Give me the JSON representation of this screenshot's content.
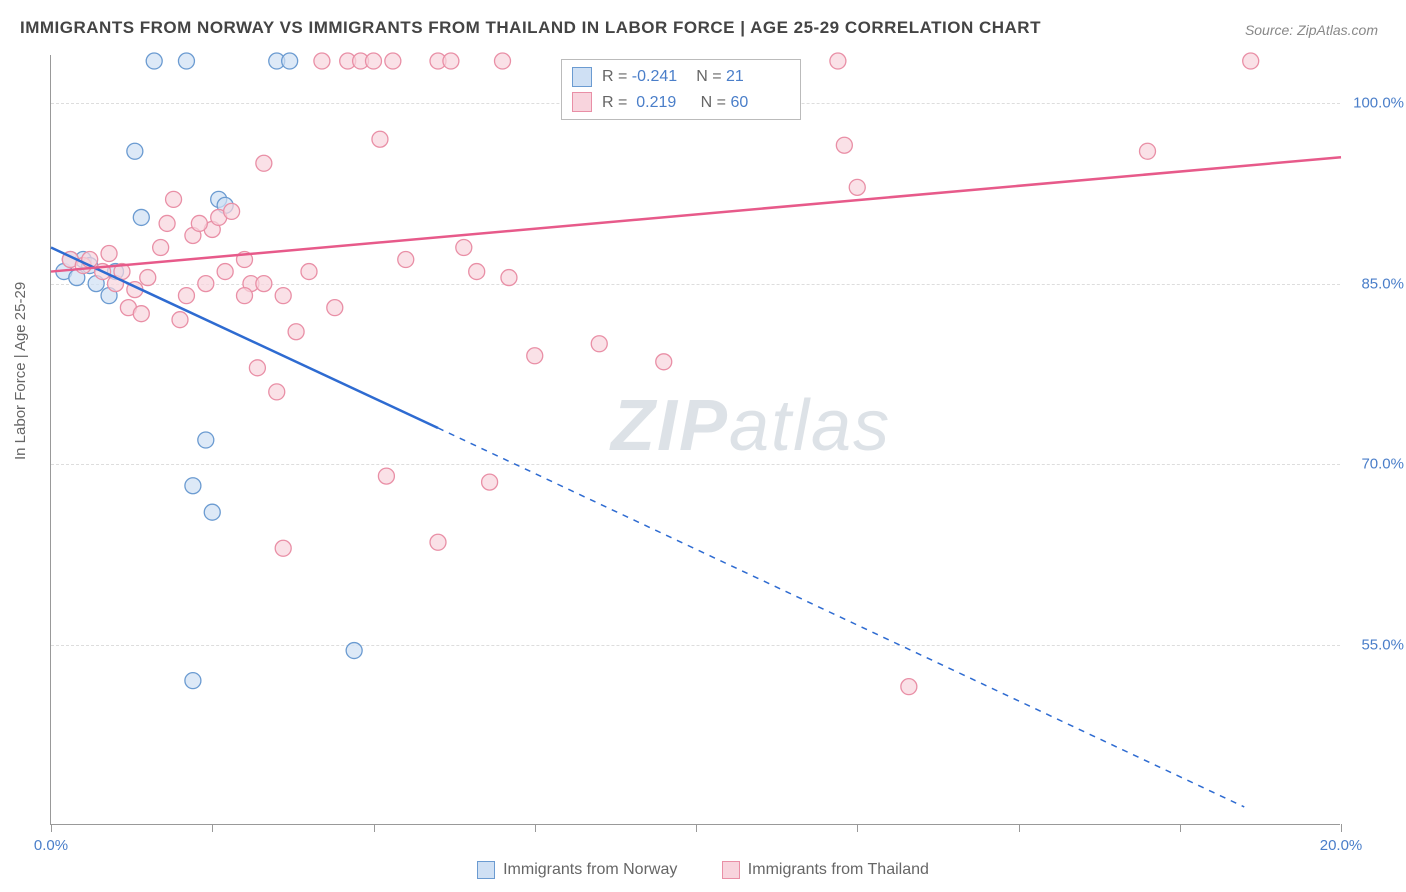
{
  "title": "IMMIGRANTS FROM NORWAY VS IMMIGRANTS FROM THAILAND IN LABOR FORCE | AGE 25-29 CORRELATION CHART",
  "source": "Source: ZipAtlas.com",
  "ylabel": "In Labor Force | Age 25-29",
  "watermark": {
    "bold": "ZIP",
    "light": "atlas"
  },
  "chart": {
    "type": "scatter-with-regression",
    "xlim": [
      0,
      20
    ],
    "ylim": [
      40,
      104
    ],
    "y_ticks": [
      55.0,
      70.0,
      85.0,
      100.0
    ],
    "y_tick_labels": [
      "55.0%",
      "70.0%",
      "85.0%",
      "100.0%"
    ],
    "x_ticks": [
      0,
      2.5,
      5,
      7.5,
      10,
      12.5,
      15,
      17.5,
      20
    ],
    "x_tick_labels": {
      "0": "0.0%",
      "20": "20.0%"
    },
    "background": "#ffffff",
    "grid_color": "#dddddd",
    "axis_color": "#999999",
    "label_color": "#4a7ec9",
    "legend_top": {
      "rows": [
        {
          "color_fill": "#cfe0f4",
          "color_stroke": "#6b9bd1",
          "r": "-0.241",
          "n": "21"
        },
        {
          "color_fill": "#f8d4dd",
          "color_stroke": "#e98fa6",
          "r": "0.219",
          "n": "60"
        }
      ]
    },
    "legend_bottom": [
      {
        "label": "Immigrants from Norway",
        "fill": "#cfe0f4",
        "stroke": "#6b9bd1"
      },
      {
        "label": "Immigrants from Thailand",
        "fill": "#f8d4dd",
        "stroke": "#e98fa6"
      }
    ],
    "series": [
      {
        "name": "norway",
        "marker_fill": "#cfe0f4",
        "marker_stroke": "#6b9bd1",
        "marker_r": 8,
        "line_color": "#2e6bd1",
        "line_width": 2.5,
        "reg_solid": {
          "x1": 0,
          "y1": 88,
          "x2": 6,
          "y2": 73
        },
        "reg_dash": {
          "x1": 6,
          "y1": 73,
          "x2": 18.5,
          "y2": 41.5
        },
        "points": [
          [
            0.2,
            86
          ],
          [
            0.4,
            85.5
          ],
          [
            0.5,
            87
          ],
          [
            0.6,
            86.5
          ],
          [
            0.7,
            85
          ],
          [
            0.9,
            84
          ],
          [
            1.0,
            86
          ],
          [
            1.3,
            96
          ],
          [
            1.4,
            90.5
          ],
          [
            1.6,
            103.5
          ],
          [
            2.1,
            103.5
          ],
          [
            2.6,
            92
          ],
          [
            2.7,
            91.5
          ],
          [
            2.2,
            68.2
          ],
          [
            2.4,
            72
          ],
          [
            3.5,
            103.5
          ],
          [
            3.7,
            103.5
          ],
          [
            2.5,
            66
          ],
          [
            2.2,
            52
          ],
          [
            4.7,
            54.5
          ],
          [
            0.3,
            87
          ]
        ]
      },
      {
        "name": "thailand",
        "marker_fill": "#f8d4dd",
        "marker_stroke": "#e98fa6",
        "marker_r": 8,
        "line_color": "#e75a8a",
        "line_width": 2.5,
        "reg_solid": {
          "x1": 0,
          "y1": 86,
          "x2": 20,
          "y2": 95.5
        },
        "points": [
          [
            0.3,
            87
          ],
          [
            0.5,
            86.5
          ],
          [
            0.6,
            87
          ],
          [
            0.8,
            86
          ],
          [
            1.0,
            85
          ],
          [
            1.1,
            86
          ],
          [
            1.3,
            84.5
          ],
          [
            1.5,
            85.5
          ],
          [
            1.2,
            83
          ],
          [
            1.7,
            88
          ],
          [
            1.8,
            90
          ],
          [
            2.0,
            82
          ],
          [
            2.1,
            84
          ],
          [
            2.2,
            89
          ],
          [
            2.4,
            85
          ],
          [
            2.5,
            89.5
          ],
          [
            2.6,
            90.5
          ],
          [
            2.8,
            91
          ],
          [
            3.0,
            87
          ],
          [
            3.1,
            85
          ],
          [
            3.2,
            78
          ],
          [
            3.3,
            95
          ],
          [
            3.5,
            76
          ],
          [
            3.6,
            84
          ],
          [
            3.8,
            81
          ],
          [
            3.0,
            84
          ],
          [
            4.0,
            86
          ],
          [
            4.2,
            103.5
          ],
          [
            4.6,
            103.5
          ],
          [
            4.8,
            103.5
          ],
          [
            5.0,
            103.5
          ],
          [
            5.1,
            97
          ],
          [
            5.2,
            69
          ],
          [
            5.3,
            103.5
          ],
          [
            5.5,
            87
          ],
          [
            6.0,
            103.5
          ],
          [
            6.0,
            63.5
          ],
          [
            6.2,
            103.5
          ],
          [
            6.4,
            88
          ],
          [
            6.6,
            86
          ],
          [
            6.8,
            68.5
          ],
          [
            7.0,
            103.5
          ],
          [
            7.1,
            85.5
          ],
          [
            7.5,
            79
          ],
          [
            3.6,
            63
          ],
          [
            8.5,
            80
          ],
          [
            9.5,
            78.5
          ],
          [
            12.2,
            103.5
          ],
          [
            12.5,
            93
          ],
          [
            13.3,
            51.5
          ],
          [
            12.3,
            96.5
          ],
          [
            17.0,
            96
          ],
          [
            18.6,
            103.5
          ],
          [
            1.9,
            92
          ],
          [
            2.3,
            90
          ],
          [
            2.7,
            86
          ],
          [
            3.3,
            85
          ],
          [
            4.4,
            83
          ],
          [
            1.4,
            82.5
          ],
          [
            0.9,
            87.5
          ]
        ]
      }
    ]
  }
}
